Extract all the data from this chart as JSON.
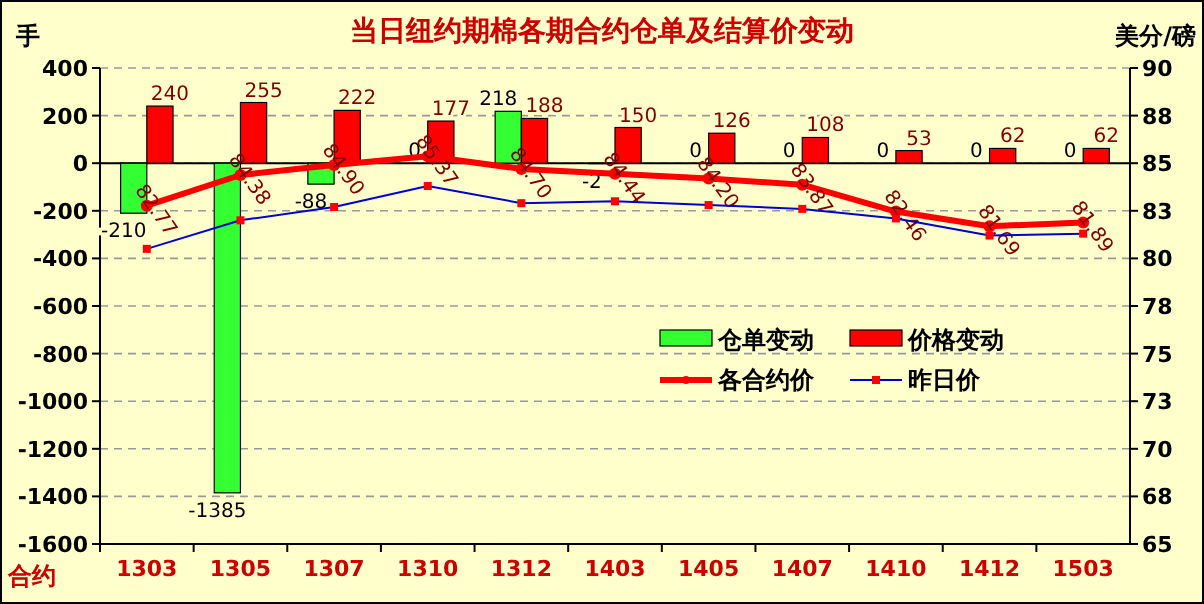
{
  "chart_data": {
    "type": "bar",
    "title": "当日纽约期棉各期合约仓单及结算价变动",
    "xlabel": "合约",
    "ylabel": "手",
    "y2label": "美分/磅",
    "categories": [
      "1303",
      "1305",
      "1307",
      "1310",
      "1312",
      "1403",
      "1405",
      "1407",
      "1410",
      "1412",
      "1503"
    ],
    "series": [
      {
        "name": "仓单变动",
        "color": "#33ff33",
        "values": [
          -210,
          -1385,
          -88,
          0,
          218,
          -2,
          0,
          0,
          0,
          0,
          0
        ],
        "value_labels": [
          "-210",
          "-1385",
          "-88",
          "0",
          "218",
          "-2",
          "0",
          "0",
          "0",
          "0",
          "0"
        ]
      },
      {
        "name": "价格变动",
        "color": "#ff0000",
        "values": [
          240,
          255,
          222,
          177,
          188,
          150,
          126,
          108,
          53,
          62,
          62
        ],
        "value_labels": [
          "240",
          "255",
          "222",
          "177",
          "188",
          "150",
          "126",
          "108",
          "53",
          "62",
          "62"
        ]
      },
      {
        "name": "各合约价",
        "type": "line",
        "axis": "y2",
        "color": "#ff0000",
        "marker": "circle",
        "values": [
          82.77,
          84.38,
          84.9,
          85.37,
          84.7,
          84.44,
          84.2,
          83.87,
          82.46,
          81.69,
          81.89
        ],
        "value_labels": [
          "82.77",
          "84.38",
          "84.90",
          "85.37",
          "84.70",
          "84.44",
          "84.20",
          "83.87",
          "82.46",
          "81.69",
          "81.89"
        ]
      },
      {
        "name": "昨日价",
        "type": "line",
        "axis": "y2",
        "color": "#0000cc",
        "marker": "square",
        "values": [
          80.5,
          82.0,
          82.7,
          83.8,
          82.9,
          83.0,
          82.8,
          82.6,
          82.1,
          81.2,
          81.3
        ]
      }
    ],
    "ylim": [
      -1600,
      400
    ],
    "yticks": [
      -1600,
      -1400,
      -1200,
      -1000,
      -800,
      -600,
      -400,
      -200,
      0,
      200,
      400
    ],
    "y2lim": [
      65,
      90
    ],
    "y2ticks": [
      65,
      {
        "value": 67.5,
        "label": "68"
      },
      70,
      {
        "value": 72.5,
        "label": "73"
      },
      75,
      {
        "value": 77.5,
        "label": "78"
      },
      80,
      {
        "value": 82.5,
        "label": "83"
      },
      85,
      {
        "value": 87.5,
        "label": "88"
      },
      90
    ],
    "grid": "y",
    "legend": "right"
  }
}
